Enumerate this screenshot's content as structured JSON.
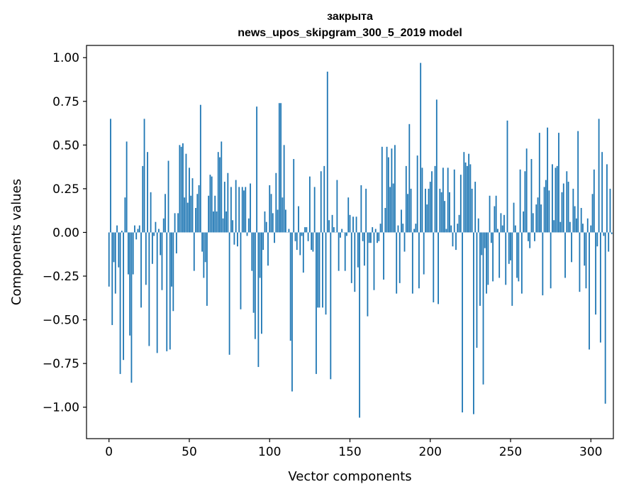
{
  "chart_data": {
    "type": "bar",
    "title": "закрыта",
    "subtitle": "news_upos_skipgram_300_5_2019 model",
    "xlabel": "Vector components",
    "ylabel": "Components values",
    "xlim": [
      -14,
      314
    ],
    "ylim": [
      -1.18,
      1.07
    ],
    "xticks": [
      0,
      50,
      100,
      150,
      200,
      250,
      300
    ],
    "xtick_labels": [
      "0",
      "50",
      "100",
      "150",
      "200",
      "250",
      "300"
    ],
    "yticks": [
      1.0,
      0.75,
      0.5,
      0.25,
      0.0,
      -0.25,
      -0.5,
      -0.75,
      -1.0
    ],
    "ytick_labels": [
      "1.00",
      "0.75",
      "0.50",
      "0.25",
      "0.00",
      "−0.25",
      "−0.50",
      "−0.75",
      "−1.00"
    ],
    "grid": false,
    "bar_color": "#1f77b4",
    "series": [
      {
        "values": [
          -0.31,
          0.65,
          -0.53,
          -0.17,
          -0.35,
          0.04,
          -0.2,
          -0.81,
          0.01,
          -0.73,
          0.2,
          0.52,
          -0.24,
          -0.59,
          -0.86,
          -0.24,
          0.04,
          -0.04,
          0.02,
          0.04,
          -0.43,
          0.38,
          0.65,
          -0.3,
          0.46,
          -0.65,
          0.23,
          -0.18,
          -0.02,
          0.06,
          -0.69,
          0.02,
          -0.13,
          -0.33,
          0.08,
          0.22,
          -0.68,
          0.41,
          -0.67,
          -0.31,
          -0.45,
          0.11,
          -0.12,
          0.11,
          0.5,
          0.49,
          0.51,
          0.2,
          0.45,
          0.17,
          0.37,
          0.21,
          0.31,
          -0.22,
          0.14,
          0.22,
          0.27,
          0.73,
          -0.11,
          -0.26,
          -0.17,
          -0.42,
          0.21,
          0.33,
          0.32,
          0.12,
          0.21,
          0.12,
          0.46,
          0.43,
          0.52,
          0.08,
          0.29,
          0.12,
          0.34,
          -0.7,
          0.26,
          0.07,
          -0.07,
          0.3,
          -0.08,
          0.26,
          -0.44,
          0.26,
          0.24,
          0.26,
          -0.02,
          0.08,
          0.28,
          -0.22,
          -0.46,
          -0.61,
          0.72,
          -0.77,
          -0.26,
          -0.58,
          -0.1,
          0.12,
          0.06,
          -0.19,
          0.27,
          0.22,
          0.11,
          -0.06,
          0.34,
          0.13,
          0.74,
          0.74,
          0.2,
          0.5,
          0.13,
          0.0,
          0.02,
          -0.62,
          -0.91,
          0.42,
          -0.05,
          -0.1,
          0.15,
          -0.13,
          -0.02,
          -0.23,
          0.03,
          0.03,
          -0.05,
          0.32,
          -0.1,
          -0.11,
          0.26,
          -0.81,
          -0.43,
          -0.43,
          0.35,
          -0.43,
          0.38,
          -0.47,
          0.92,
          0.07,
          -0.84,
          0.1,
          0.03,
          0.0,
          0.3,
          -0.22,
          -0.03,
          0.02,
          0.0,
          -0.22,
          -0.02,
          0.2,
          0.1,
          -0.29,
          0.09,
          -0.34,
          0.09,
          -0.2,
          -1.06,
          0.27,
          -0.05,
          -0.19,
          0.25,
          -0.48,
          -0.06,
          -0.06,
          0.03,
          -0.33,
          0.02,
          -0.06,
          -0.05,
          0.05,
          0.49,
          -0.27,
          0.14,
          0.49,
          0.43,
          0.26,
          0.48,
          0.28,
          0.5,
          -0.35,
          0.04,
          -0.29,
          0.13,
          0.05,
          -0.11,
          0.38,
          0.22,
          0.62,
          0.25,
          -0.35,
          0.02,
          0.05,
          0.44,
          -0.32,
          0.97,
          0.37,
          -0.24,
          0.25,
          0.16,
          0.25,
          0.29,
          0.35,
          -0.4,
          0.38,
          0.76,
          -0.41,
          0.25,
          0.23,
          0.37,
          0.18,
          0.02,
          0.37,
          0.23,
          0.04,
          -0.08,
          0.36,
          -0.1,
          0.05,
          0.1,
          0.33,
          -1.03,
          0.46,
          0.4,
          0.38,
          0.45,
          0.39,
          0.25,
          -1.04,
          0.29,
          -0.66,
          0.08,
          -0.42,
          -0.13,
          -0.87,
          -0.09,
          -0.35,
          -0.3,
          0.21,
          -0.06,
          -0.28,
          0.15,
          0.21,
          0.02,
          -0.26,
          0.11,
          0.04,
          0.1,
          -0.3,
          0.64,
          -0.18,
          -0.16,
          -0.42,
          0.17,
          0.04,
          -0.26,
          -0.28,
          0.36,
          -0.35,
          0.12,
          0.35,
          0.48,
          -0.05,
          -0.09,
          0.42,
          0.11,
          -0.05,
          0.16,
          0.2,
          0.57,
          0.16,
          -0.36,
          0.26,
          0.3,
          0.6,
          0.24,
          -0.32,
          0.39,
          0.07,
          0.37,
          0.38,
          0.57,
          0.06,
          0.23,
          0.28,
          -0.26,
          0.35,
          0.29,
          0.06,
          -0.17,
          0.25,
          0.15,
          0.08,
          0.58,
          -0.34,
          0.14,
          0.05,
          -0.19,
          -0.32,
          0.08,
          -0.67,
          0.04,
          0.22,
          0.36,
          -0.47,
          -0.08,
          0.65,
          -0.63,
          0.46,
          -0.02,
          -0.98,
          0.39,
          -0.11,
          0.25,
          -0.01
        ]
      }
    ]
  }
}
